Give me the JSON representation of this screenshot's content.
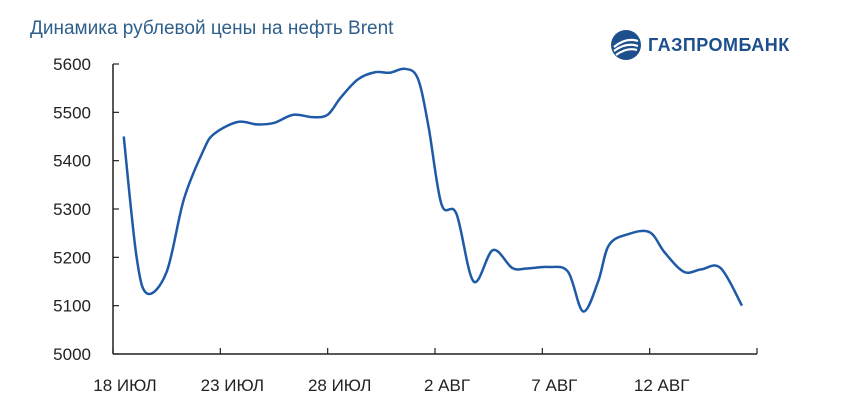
{
  "title": "Динамика рублевой цены на нефть Brent",
  "logo": {
    "text": "ГАЗПРОМБАНК",
    "icon": "gazprombank-logo-icon"
  },
  "colors": {
    "line": "#1f5aa6",
    "title": "#2f5f8a",
    "axis": "#222222"
  },
  "chart_data": {
    "type": "line",
    "title": "Динамика рублевой цены на нефть Brent",
    "xlabel": "",
    "ylabel": "",
    "ylim": [
      5000,
      5600
    ],
    "yticks": [
      5000,
      5100,
      5200,
      5300,
      5400,
      5500,
      5600
    ],
    "xtick_labels": [
      "18 ИЮЛ",
      "23 ИЮЛ",
      "28 ИЮЛ",
      "2 АВГ",
      "7 АВГ",
      "12 АВГ"
    ],
    "xtick_positions": [
      0,
      5,
      10,
      15,
      20,
      25
    ],
    "xlim": [
      0,
      30
    ],
    "grid": false,
    "series": [
      {
        "x": [
          0.5,
          1.1,
          1.6,
          2.5,
          3.3,
          4.2,
          4.7,
          5.8,
          6.7,
          7.5,
          8.4,
          9.3,
          10.0,
          10.6,
          11.4,
          12.2,
          12.9,
          13.6,
          14.2,
          14.7,
          15.3,
          16.0,
          16.8,
          17.7,
          18.6,
          19.3,
          20.3,
          21.2,
          21.9,
          22.6,
          23.1,
          24.0,
          25.0,
          25.7,
          26.6,
          27.4,
          28.3,
          29.3
        ],
        "y": [
          5450,
          5200,
          5125,
          5170,
          5320,
          5420,
          5455,
          5480,
          5475,
          5478,
          5495,
          5490,
          5495,
          5530,
          5568,
          5583,
          5582,
          5590,
          5570,
          5470,
          5310,
          5290,
          5150,
          5215,
          5178,
          5177,
          5180,
          5170,
          5088,
          5150,
          5225,
          5248,
          5252,
          5210,
          5170,
          5175,
          5178,
          5100
        ]
      }
    ]
  }
}
